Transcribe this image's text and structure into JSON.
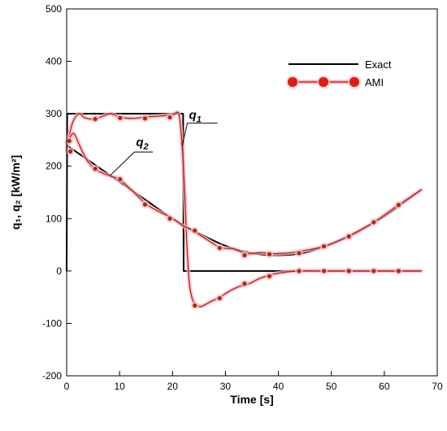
{
  "chart_data": {
    "type": "line",
    "title": "",
    "xlabel": "Time [s]",
    "ylabel": "q₁, q₂ [kW/m²]",
    "xlim": [
      0,
      70
    ],
    "ylim": [
      -200,
      500
    ],
    "xticks": [
      0,
      10,
      20,
      30,
      40,
      50,
      60,
      70
    ],
    "yticks": [
      -200,
      -100,
      0,
      100,
      200,
      300,
      400,
      500
    ],
    "grid": false,
    "legend_position": "top-right",
    "legend": [
      {
        "label": "Exact",
        "style": "line",
        "color": "#000000"
      },
      {
        "label": "AMI",
        "style": "line-markers",
        "color": "#cc1100"
      }
    ],
    "series": [
      {
        "name": "Exact",
        "curve": "q1",
        "color": "#000000",
        "x": [
          0,
          0.1,
          22,
          22.1,
          67
        ],
        "y": [
          0,
          300,
          300,
          0,
          0
        ]
      },
      {
        "name": "Exact",
        "curve": "q2",
        "color": "#000000",
        "x": [
          0,
          5,
          10,
          15,
          20,
          25,
          30,
          35,
          40,
          45,
          50,
          55,
          60,
          67
        ],
        "y": [
          240,
          205,
          170,
          135,
          100,
          72,
          48,
          34,
          30,
          35,
          52,
          76,
          104,
          155
        ]
      },
      {
        "name": "AMI",
        "curve": "q1",
        "color": "#cc1100",
        "x": [
          0,
          0.4,
          1.2,
          2.3,
          3.5,
          5.3,
          7,
          8.3,
          10,
          12.5,
          15,
          18,
          20,
          21.2,
          21.8,
          22.3,
          22.7,
          23.2,
          23.8,
          24.5,
          25.3,
          26.2,
          27.5,
          29,
          30.5,
          32.5,
          34.5,
          36.5,
          39,
          41.5,
          43.9,
          48.6,
          53.3,
          58,
          62.7,
          67
        ],
        "y": [
          230,
          255,
          285,
          300,
          292,
          290,
          296,
          300,
          294,
          291,
          294,
          296,
          298,
          299,
          240,
          150,
          50,
          -25,
          -55,
          -65,
          -68,
          -64,
          -57,
          -50,
          -40,
          -30,
          -24,
          -14,
          -6,
          -2,
          0,
          0,
          0,
          0,
          0,
          0
        ]
      },
      {
        "name": "AMI",
        "curve": "q2",
        "color": "#cc1100",
        "x": [
          0,
          0.6,
          1.4,
          2.5,
          3.8,
          5.3,
          7,
          8.6,
          10,
          12.5,
          15,
          17.5,
          20,
          22,
          24,
          26.5,
          29,
          31.5,
          34,
          36.5,
          39,
          41.5,
          43.9,
          48.6,
          53.3,
          58,
          62.7,
          67
        ],
        "y": [
          245,
          255,
          262,
          238,
          212,
          195,
          186,
          180,
          175,
          152,
          128,
          113,
          100,
          86,
          76,
          60,
          45,
          42,
          33,
          35,
          33,
          34,
          37,
          47,
          66,
          93,
          126,
          155
        ]
      }
    ],
    "markers": {
      "color": "#b02a0c",
      "q1": {
        "x": [
          0.7,
          5.4,
          10.1,
          14.8,
          19.5,
          24.2,
          28.9,
          33.6,
          38.3,
          43.9,
          48.6,
          53.3,
          58,
          62.7
        ],
        "y": [
          228,
          290,
          292,
          291,
          293,
          -66,
          -52,
          -24,
          -10,
          0,
          0,
          0,
          0,
          0
        ]
      },
      "q2": {
        "x": [
          0.5,
          5.4,
          10.1,
          14.8,
          19.5,
          24.2,
          28.9,
          33.6,
          38.3,
          43.9,
          48.6,
          53.3,
          58,
          62.7
        ],
        "y": [
          248,
          195,
          175,
          127,
          100,
          77,
          44,
          30,
          32,
          34,
          47,
          66,
          93,
          126
        ]
      }
    },
    "annotations": [
      {
        "base": "q",
        "sub": "1",
        "x": 22.8,
        "y": 290
      },
      {
        "base": "q",
        "sub": "2",
        "x": 12.8,
        "y": 238
      }
    ]
  }
}
